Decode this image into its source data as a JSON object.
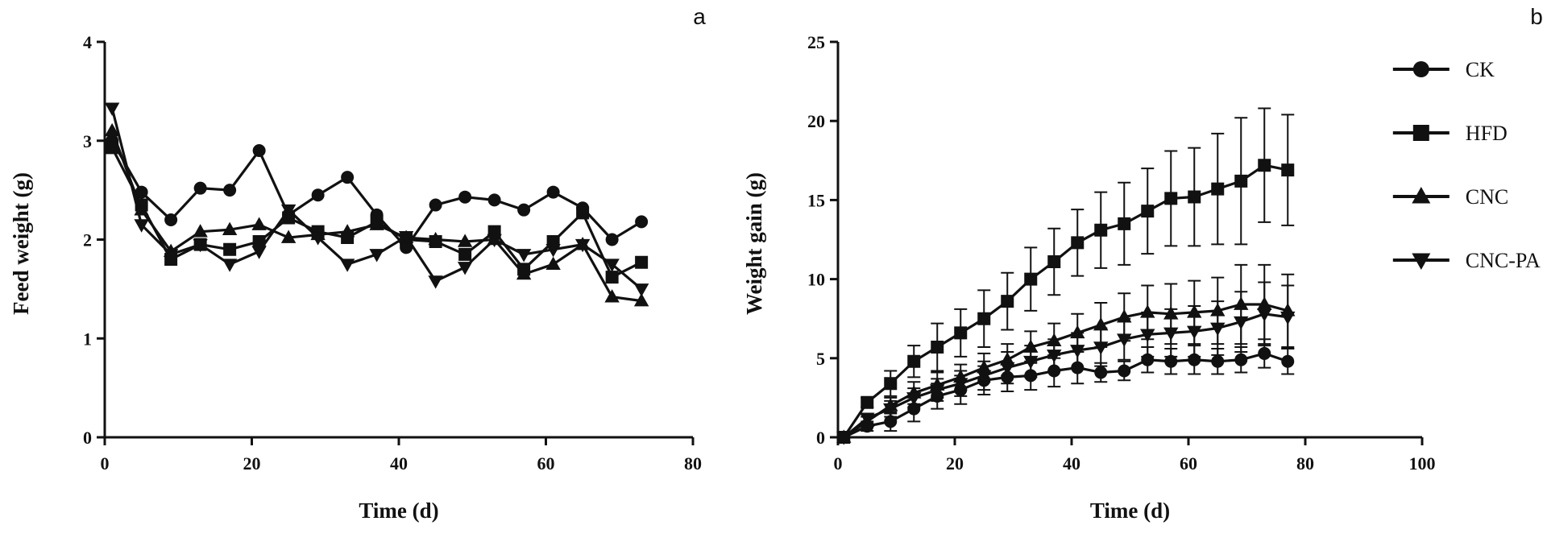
{
  "chart_data": [
    {
      "panel": "a",
      "type": "line",
      "xlabel": "Time (d)",
      "ylabel": "Feed weight (g)",
      "xlim": [
        0,
        80
      ],
      "ylim": [
        0,
        4
      ],
      "xticks": [
        0,
        20,
        40,
        60,
        80
      ],
      "yticks": [
        0,
        1,
        2,
        3,
        4
      ],
      "legend": "none",
      "series": [
        {
          "name": "CK",
          "marker": "circle",
          "x": [
            1,
            5,
            9,
            13,
            17,
            21,
            25,
            29,
            33,
            37,
            41,
            45,
            49,
            53,
            57,
            61,
            65,
            69,
            73
          ],
          "y": [
            3.0,
            2.48,
            2.2,
            2.52,
            2.5,
            2.9,
            2.25,
            2.45,
            2.63,
            2.25,
            1.92,
            2.35,
            2.43,
            2.4,
            2.3,
            2.48,
            2.32,
            2.0,
            2.18
          ]
        },
        {
          "name": "HFD",
          "marker": "square",
          "x": [
            1,
            5,
            9,
            13,
            17,
            21,
            25,
            29,
            33,
            37,
            41,
            45,
            49,
            53,
            57,
            61,
            65,
            69,
            73
          ],
          "y": [
            2.93,
            2.35,
            1.8,
            1.95,
            1.9,
            1.98,
            2.22,
            2.08,
            2.02,
            2.18,
            2.0,
            1.98,
            1.85,
            2.08,
            1.7,
            1.98,
            2.27,
            1.62,
            1.77
          ]
        },
        {
          "name": "CNC",
          "marker": "triangle-up",
          "x": [
            1,
            5,
            9,
            13,
            17,
            21,
            25,
            29,
            33,
            37,
            41,
            45,
            49,
            53,
            57,
            61,
            65,
            69,
            73
          ],
          "y": [
            3.1,
            2.3,
            1.88,
            2.08,
            2.1,
            2.15,
            2.02,
            2.05,
            2.08,
            2.15,
            2.02,
            2.0,
            1.98,
            2.0,
            1.65,
            1.75,
            1.95,
            1.42,
            1.38
          ]
        },
        {
          "name": "CNC-PA",
          "marker": "triangle-down",
          "x": [
            1,
            5,
            9,
            13,
            17,
            21,
            25,
            29,
            33,
            37,
            41,
            45,
            49,
            53,
            57,
            61,
            65,
            69,
            73
          ],
          "y": [
            3.33,
            2.15,
            1.85,
            1.95,
            1.75,
            1.88,
            2.3,
            2.02,
            1.75,
            1.85,
            2.03,
            1.58,
            1.72,
            2.0,
            1.85,
            1.9,
            1.95,
            1.75,
            1.5
          ]
        }
      ]
    },
    {
      "panel": "b",
      "type": "line",
      "xlabel": "Time (d)",
      "ylabel": "Weight gain (g)",
      "xlim": [
        0,
        100
      ],
      "ylim": [
        0,
        25
      ],
      "xticks": [
        0,
        20,
        40,
        60,
        80,
        100
      ],
      "yticks": [
        0,
        5,
        10,
        15,
        20,
        25
      ],
      "legend": "top-right",
      "series": [
        {
          "name": "CK",
          "marker": "circle",
          "x": [
            1,
            5,
            9,
            13,
            17,
            21,
            25,
            29,
            33,
            37,
            41,
            45,
            49,
            53,
            57,
            61,
            65,
            69,
            73,
            77
          ],
          "y": [
            0,
            0.7,
            1.0,
            1.8,
            2.6,
            3.0,
            3.6,
            3.8,
            3.9,
            4.2,
            4.4,
            4.1,
            4.2,
            4.9,
            4.8,
            4.9,
            4.8,
            4.9,
            5.3,
            4.8
          ],
          "err": [
            0,
            0.3,
            0.6,
            0.8,
            0.8,
            0.9,
            0.9,
            0.9,
            0.9,
            1.0,
            1.0,
            0.6,
            0.6,
            0.8,
            0.8,
            0.9,
            0.8,
            0.8,
            0.9,
            0.8
          ]
        },
        {
          "name": "HFD",
          "marker": "square",
          "x": [
            1,
            5,
            9,
            13,
            17,
            21,
            25,
            29,
            33,
            37,
            41,
            45,
            49,
            53,
            57,
            61,
            65,
            69,
            73,
            77
          ],
          "y": [
            0,
            2.2,
            3.4,
            4.8,
            5.7,
            6.6,
            7.5,
            8.6,
            10.0,
            11.1,
            12.3,
            13.1,
            13.5,
            14.3,
            15.1,
            15.2,
            15.7,
            16.2,
            17.2,
            16.9
          ],
          "err": [
            0,
            0.3,
            0.8,
            1.0,
            1.5,
            1.5,
            1.8,
            1.8,
            2.0,
            2.1,
            2.1,
            2.4,
            2.6,
            2.7,
            3.0,
            3.1,
            3.5,
            4.0,
            3.6,
            3.5
          ]
        },
        {
          "name": "CNC",
          "marker": "triangle-up",
          "x": [
            1,
            5,
            9,
            13,
            17,
            21,
            25,
            29,
            33,
            37,
            41,
            45,
            49,
            53,
            57,
            61,
            65,
            69,
            73,
            77
          ],
          "y": [
            0,
            1.0,
            2.0,
            2.8,
            3.3,
            3.8,
            4.4,
            4.9,
            5.7,
            6.1,
            6.6,
            7.1,
            7.6,
            7.9,
            7.8,
            7.9,
            8.0,
            8.4,
            8.4,
            8.0
          ],
          "err": [
            0,
            0.3,
            0.5,
            0.7,
            0.8,
            0.8,
            0.9,
            1.0,
            1.0,
            1.1,
            1.2,
            1.4,
            1.5,
            1.7,
            1.9,
            2.0,
            2.1,
            2.5,
            2.5,
            2.3
          ]
        },
        {
          "name": "CNC-PA",
          "marker": "triangle-down",
          "x": [
            1,
            5,
            9,
            13,
            17,
            21,
            25,
            29,
            33,
            37,
            41,
            45,
            49,
            53,
            57,
            61,
            65,
            69,
            73,
            77
          ],
          "y": [
            0,
            1.2,
            1.8,
            2.5,
            3.0,
            3.4,
            3.9,
            4.4,
            4.8,
            5.2,
            5.5,
            5.7,
            6.2,
            6.5,
            6.6,
            6.7,
            6.9,
            7.3,
            7.8,
            7.6
          ],
          "err": [
            0,
            0.3,
            0.5,
            0.6,
            0.7,
            0.8,
            0.9,
            1.0,
            1.0,
            1.0,
            1.1,
            1.2,
            1.3,
            1.4,
            1.5,
            1.6,
            1.7,
            1.9,
            2.0,
            2.0
          ]
        }
      ]
    }
  ]
}
